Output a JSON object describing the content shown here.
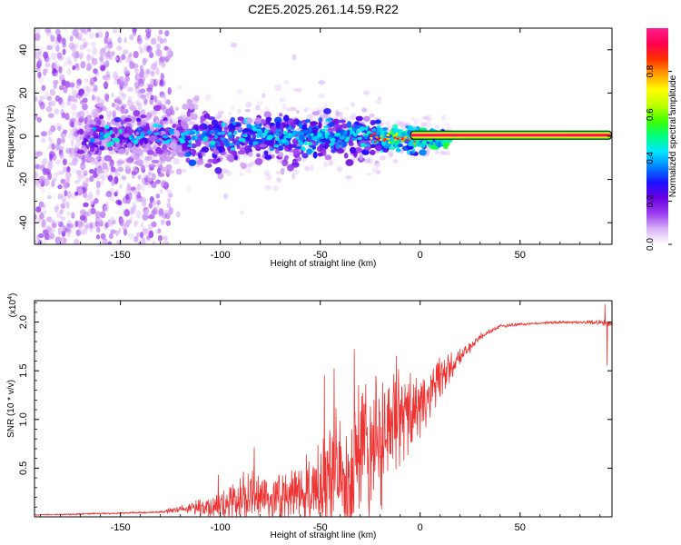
{
  "chart_data": [
    {
      "type": "heatmap",
      "title": "C2E5.2025.261.14.59.R22",
      "xlabel": "Height of straight line (km)",
      "ylabel": "Frequency (Hz)",
      "xlim": [
        -193,
        96
      ],
      "ylim": [
        -50,
        50
      ],
      "xticks": [
        "-150",
        "-100",
        "-50",
        "0",
        "50"
      ],
      "xtick_values": [
        -150,
        -100,
        -50,
        0,
        50
      ],
      "yticks": [
        "-40",
        "-20",
        "0",
        "20",
        "40"
      ],
      "ytick_values": [
        -40,
        -20,
        0,
        20,
        40
      ],
      "colorbar": {
        "label": "Normalized spectral amplitude",
        "ticks": [
          "0.0",
          "0.2",
          "0.4",
          "0.6",
          "0.8"
        ],
        "tick_values": [
          0.0,
          0.2,
          0.4,
          0.6,
          0.8
        ],
        "range": [
          0,
          1
        ],
        "colors": [
          "#ffffff",
          "#d9b3f5",
          "#9a3cf0",
          "#6a00e0",
          "#1a10ff",
          "#0080ff",
          "#00e6ff",
          "#00ff80",
          "#40ff00",
          "#c0ff00",
          "#ffff00",
          "#ffa000",
          "#ff3000",
          "#ff0050",
          "#ff1e8c"
        ]
      },
      "features": {
        "scatter_region_x": [
          -193,
          -125
        ],
        "band_region_x": [
          -170,
          15
        ],
        "narrow_line_x": [
          -5,
          96
        ],
        "narrow_line_freq": 0.5,
        "narrow_line_amplitude": 1.0
      }
    },
    {
      "type": "line",
      "title": "",
      "xlabel": "Height of straight line (km)",
      "ylabel": "SNR (10 * v/v)",
      "exponent_label": "(x10",
      "exponent_sup": "4",
      "exponent_close": ")",
      "xlim": [
        -193,
        96
      ],
      "ylim": [
        0,
        2.22
      ],
      "xticks": [
        "-150",
        "-100",
        "-50",
        "0",
        "50"
      ],
      "xtick_values": [
        -150,
        -100,
        -50,
        0,
        50
      ],
      "yticks": [
        "0.5",
        "1.0",
        "1.5",
        "2.0"
      ],
      "ytick_values": [
        0.5,
        1.0,
        1.5,
        2.0
      ],
      "series": [
        {
          "name": "SNR",
          "color": "#ee3333",
          "envelope_x": [
            -193,
            -170,
            -150,
            -130,
            -115,
            -100,
            -90,
            -80,
            -70,
            -60,
            -50,
            -40,
            -30,
            -20,
            -10,
            0,
            10,
            20,
            30,
            40,
            50,
            60,
            70,
            80,
            90,
            96
          ],
          "envelope_y": [
            0.02,
            0.03,
            0.04,
            0.05,
            0.1,
            0.15,
            0.22,
            0.25,
            0.25,
            0.3,
            0.35,
            0.55,
            0.7,
            0.85,
            1.05,
            1.2,
            1.45,
            1.65,
            1.85,
            1.96,
            1.98,
            1.99,
            2.0,
            2.0,
            2.0,
            1.98
          ],
          "noise_amplitude_y": [
            0.005,
            0.01,
            0.01,
            0.01,
            0.06,
            0.15,
            0.25,
            0.28,
            0.25,
            0.3,
            0.45,
            0.7,
            0.75,
            0.7,
            0.5,
            0.35,
            0.2,
            0.08,
            0.04,
            0.02,
            0.015,
            0.015,
            0.015,
            0.015,
            0.03,
            0.02
          ],
          "peaks": [
            {
              "x": -101,
              "y": 0.43
            },
            {
              "x": -83,
              "y": 0.71
            },
            {
              "x": -48,
              "y": 1.45
            },
            {
              "x": -43,
              "y": 1.52
            },
            {
              "x": -33,
              "y": 1.72
            },
            {
              "x": -12,
              "y": 1.65
            },
            {
              "x": 92.5,
              "y": 2.18
            },
            {
              "x": 93.5,
              "y": 1.56
            }
          ]
        }
      ]
    }
  ]
}
